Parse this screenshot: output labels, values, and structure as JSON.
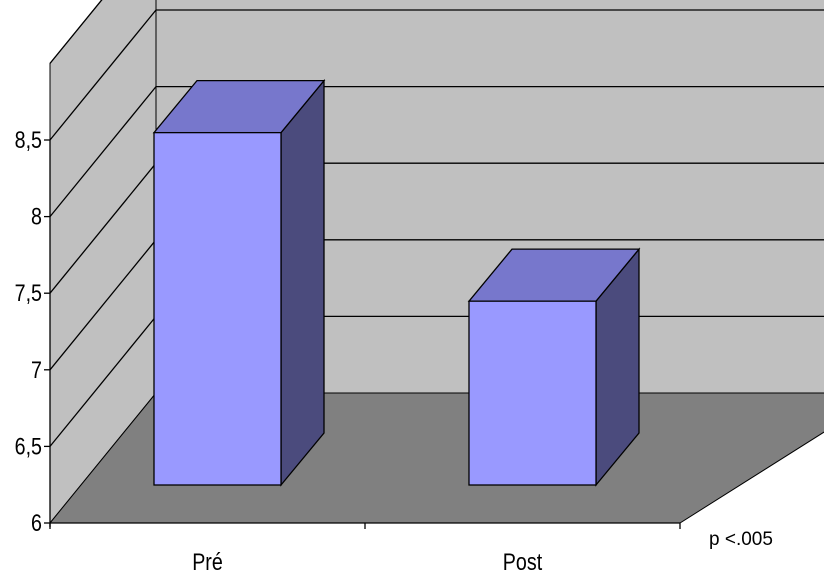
{
  "chart_data": {
    "type": "bar",
    "three_d": true,
    "categories": [
      "Pré",
      "Post"
    ],
    "values": [
      8.3,
      7.2
    ],
    "ylim": [
      6,
      8.5
    ],
    "yticks": [
      "6",
      "6,5",
      "7",
      "7,5",
      "8",
      "8,5"
    ],
    "grid": true,
    "annotation": "p <.005",
    "colors": {
      "bar_front": "#9999ff",
      "bar_top": "#7777cc",
      "bar_side": "#4b4b7d",
      "back_wall": "#c0c0c0",
      "side_wall": "#c0c0c0",
      "floor": "#808080"
    }
  }
}
